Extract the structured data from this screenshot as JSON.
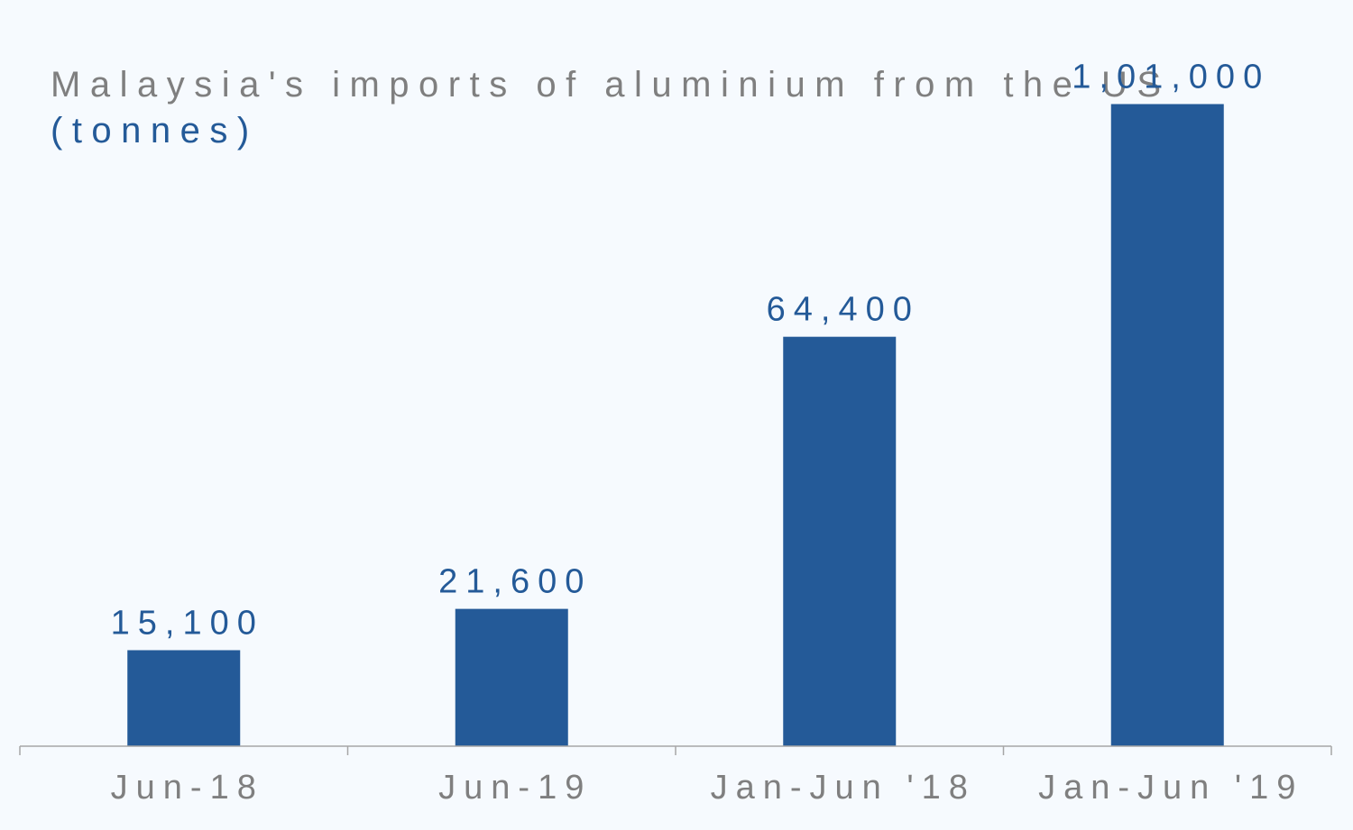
{
  "chart_data": {
    "type": "bar",
    "title": "Malaysia's imports of aluminium from the US",
    "subtitle": "(tonnes)",
    "categories": [
      "Jun-18",
      "Jun-19",
      "Jan-Jun '18",
      "Jan-Jun '19"
    ],
    "values": [
      15100,
      21600,
      64400,
      101000
    ],
    "value_labels": [
      "15,100",
      "21,600",
      "64,400",
      "1,01,000"
    ],
    "xlabel": "",
    "ylabel": "",
    "ylim": [
      0,
      110000
    ],
    "grid": false,
    "legend": "none",
    "bar_color": "#245a98"
  }
}
